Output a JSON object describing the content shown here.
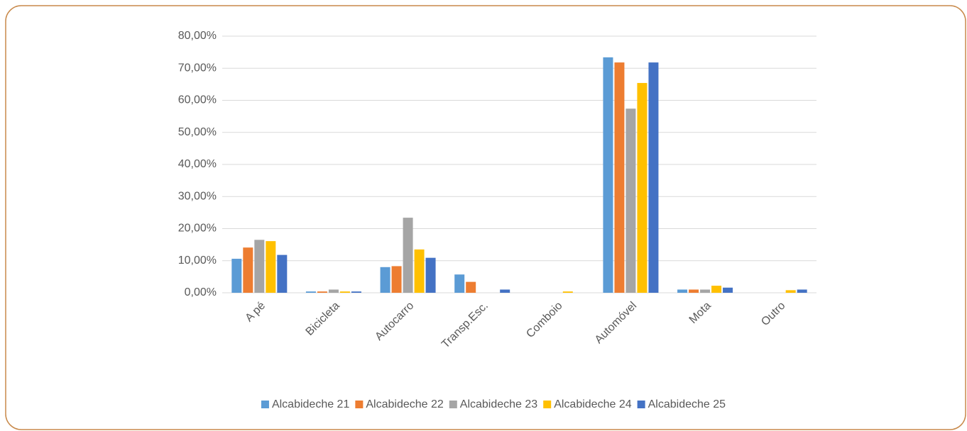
{
  "chart_data": {
    "type": "bar",
    "categories": [
      "A pé",
      "Bicicleta",
      "Autocarro",
      "Transp.Esc.",
      "Comboio",
      "Automóvel",
      "Mota",
      "Outro"
    ],
    "series": [
      {
        "name": "Alcabideche 21",
        "color": "#5b9bd5",
        "values": [
          10.6,
          0.4,
          8.0,
          5.7,
          0,
          73.4,
          1.0,
          0
        ]
      },
      {
        "name": "Alcabideche 22",
        "color": "#ed7d31",
        "values": [
          14.1,
          0.4,
          8.3,
          3.4,
          0,
          71.8,
          1.0,
          0
        ]
      },
      {
        "name": "Alcabideche 23",
        "color": "#a5a5a5",
        "values": [
          16.5,
          1.0,
          23.4,
          0,
          0,
          57.4,
          1.0,
          0
        ]
      },
      {
        "name": "Alcabideche 24",
        "color": "#ffc000",
        "values": [
          16.1,
          0.4,
          13.5,
          0,
          0.4,
          65.4,
          2.2,
          0.8
        ]
      },
      {
        "name": "Alcabideche 25",
        "color": "#4472c4",
        "values": [
          11.8,
          0.4,
          10.9,
          1.0,
          0,
          71.8,
          1.6,
          1.0
        ]
      }
    ],
    "ylim": [
      0,
      80
    ],
    "yticks": [
      {
        "value": 0,
        "label": "0,00%"
      },
      {
        "value": 10,
        "label": "10,00%"
      },
      {
        "value": 20,
        "label": "20,00%"
      },
      {
        "value": 30,
        "label": "30,00%"
      },
      {
        "value": 40,
        "label": "40,00%"
      },
      {
        "value": 50,
        "label": "50,00%"
      },
      {
        "value": 60,
        "label": "60,00%"
      },
      {
        "value": 70,
        "label": "70,00%"
      },
      {
        "value": 80,
        "label": "80,00%"
      }
    ],
    "grid": true,
    "legend": "bottom"
  }
}
